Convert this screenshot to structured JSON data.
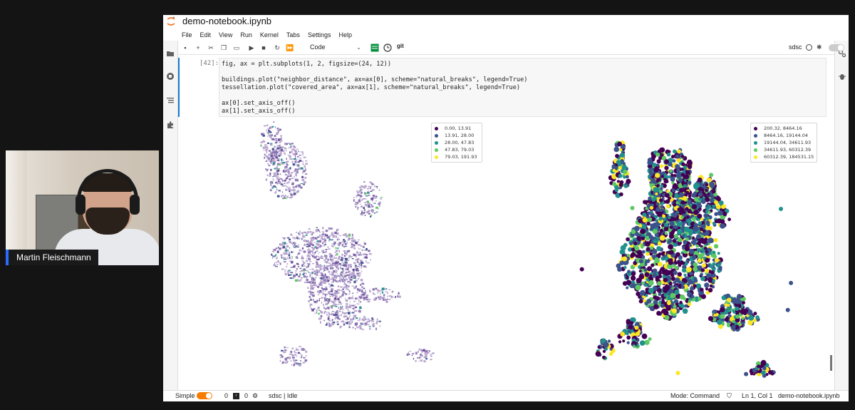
{
  "webcam": {
    "name": "Martin Fleischmann"
  },
  "window": {
    "title": "demo-notebook.ipynb"
  },
  "menu": [
    "File",
    "Edit",
    "View",
    "Run",
    "Kernel",
    "Tabs",
    "Settings",
    "Help"
  ],
  "toolbar": {
    "cell_type": "Code",
    "kernel": "sdsc",
    "git_label": "git"
  },
  "cell": {
    "prompt": "[42]:",
    "code_lines": [
      "fig, ax = plt.subplots(1, 2, figsize=(24, 12))",
      "",
      "buildings.plot(\"neighbor_distance\", ax=ax[0], scheme=\"natural_breaks\", legend=True)",
      "tessellation.plot(\"covered_area\", ax=ax[1], scheme=\"natural_breaks\", legend=True)",
      "",
      "ax[0].set_axis_off()",
      "ax[1].set_axis_off()"
    ]
  },
  "output": {
    "legend_left": [
      {
        "label": "0.00, 13.91",
        "color": "#440154"
      },
      {
        "label": "13.91, 28.00",
        "color": "#3b528b"
      },
      {
        "label": "28.00, 47.83",
        "color": "#21918c"
      },
      {
        "label": "47.83, 79.03",
        "color": "#5ec962"
      },
      {
        "label": "79.03, 191.93",
        "color": "#fde725"
      }
    ],
    "legend_right": [
      {
        "label": "200.32, 8464.16",
        "color": "#440154"
      },
      {
        "label": "8464.16, 19144.04",
        "color": "#3b528b"
      },
      {
        "label": "19144.04, 34611.93",
        "color": "#21918c"
      },
      {
        "label": "34611.93, 60312.39",
        "color": "#5ec962"
      },
      {
        "label": "60312.39, 184531.15",
        "color": "#fde725"
      }
    ]
  },
  "statusbar": {
    "mode_label": "Simple",
    "terminals": "0",
    "kernels": "0",
    "kernel_status": "sdsc | Idle",
    "mode": "Mode: Command",
    "position": "Ln 1, Col 1",
    "filename": "demo-notebook.ipynb"
  }
}
